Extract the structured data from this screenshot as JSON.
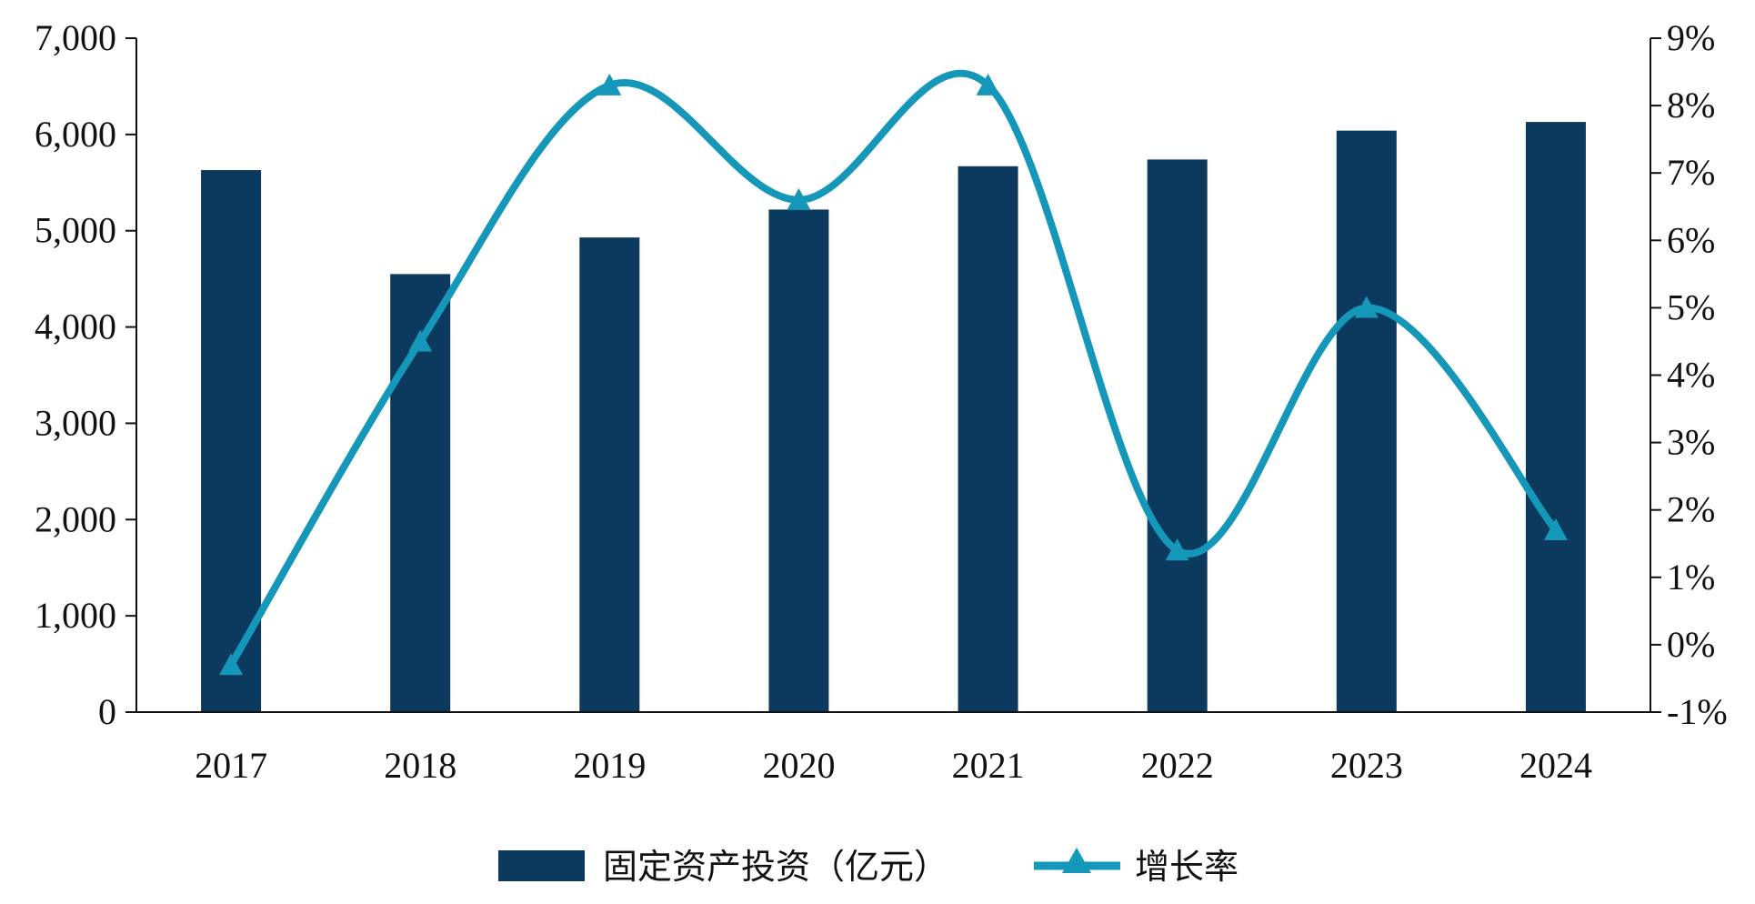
{
  "chart_data": {
    "type": "bar",
    "categories": [
      "2017",
      "2018",
      "2019",
      "2020",
      "2021",
      "2022",
      "2023",
      "2024"
    ],
    "series": [
      {
        "name": "固定资产投资（亿元）",
        "type": "bar",
        "axis": "left",
        "values": [
          5630,
          4550,
          4930,
          5220,
          5670,
          5740,
          6040,
          6130
        ]
      },
      {
        "name": "增长率",
        "type": "line",
        "axis": "right",
        "marker": "triangle",
        "values": [
          -0.3,
          4.5,
          8.3,
          6.6,
          8.3,
          1.4,
          5.0,
          1.7
        ]
      }
    ],
    "y_left": {
      "min": 0,
      "max": 7000,
      "step": 1000,
      "ticks": [
        "0",
        "1,000",
        "2,000",
        "3,000",
        "4,000",
        "5,000",
        "6,000",
        "7,000"
      ]
    },
    "y_right": {
      "min": -1,
      "max": 9,
      "step": 1,
      "ticks": [
        "-1%",
        "0%",
        "1%",
        "2%",
        "3%",
        "4%",
        "5%",
        "6%",
        "7%",
        "8%",
        "9%"
      ]
    },
    "colors": {
      "bar": "#0b3a5e",
      "line": "#1497b8",
      "axis": "#111111"
    },
    "legend": "bottom-center",
    "grid": false,
    "title": "",
    "xlabel": "",
    "ylabel": ""
  }
}
